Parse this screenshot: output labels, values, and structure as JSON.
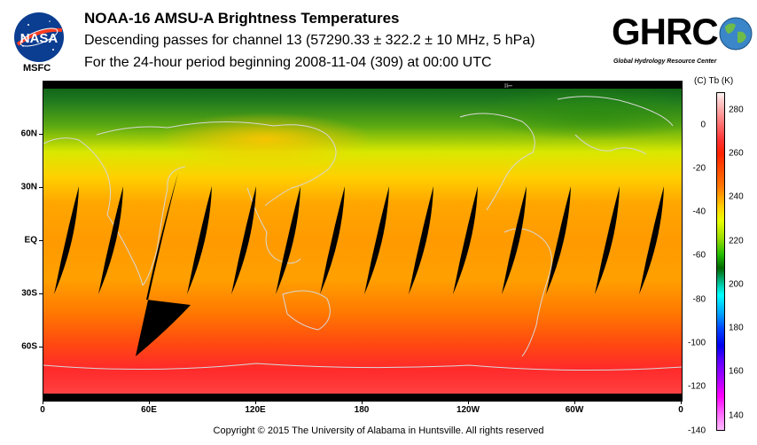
{
  "header": {
    "title": "NOAA-16 AMSU-A Brightness Temperatures",
    "subtitle": "Descending passes for channel 13 (57290.33 ± 322.2 ± 10 MHz, 5 hPa)",
    "period": "For the 24-hour period beginning 2008-11-04 (309) at 00:00 UTC"
  },
  "logos": {
    "nasa": "NASA",
    "nasa_sub": "MSFC",
    "ghrc": "GHRC",
    "ghrc_sub": "Global Hydrology Resource Center"
  },
  "map": {
    "lat_labels": [
      "60N",
      "30N",
      "EQ",
      "30S",
      "60S"
    ],
    "lat_values": [
      60,
      30,
      0,
      -30,
      -60
    ],
    "lon_labels": [
      "0",
      "60E",
      "120E",
      "180",
      "120W",
      "60W",
      "0"
    ],
    "lon_values": [
      0,
      60,
      120,
      180,
      240,
      300,
      360
    ],
    "orbit_arrow": "⇤"
  },
  "colorbar": {
    "header": "(C)  Tb  (K)",
    "celsius_labels": [
      "0",
      "-20",
      "-40",
      "-60",
      "-80",
      "-100",
      "-120",
      "-140"
    ],
    "celsius_values": [
      0,
      -20,
      -40,
      -60,
      -80,
      -100,
      -120,
      -140
    ],
    "kelvin_labels": [
      "280",
      "260",
      "240",
      "220",
      "200",
      "180",
      "160",
      "140"
    ],
    "kelvin_values": [
      280,
      260,
      240,
      220,
      200,
      180,
      160,
      140
    ],
    "kelvin_range": [
      133,
      288
    ]
  },
  "footer": {
    "copyright": "Copyright © 2015 The University of Alabama in Huntsville.  All rights reserved"
  },
  "colors": {
    "black_gap": "#000000",
    "polar_south": "#ff2a2a",
    "polar_north": "#1f7a1f",
    "tropics": "#ff9a00",
    "coastline": "#d8d8d8"
  }
}
